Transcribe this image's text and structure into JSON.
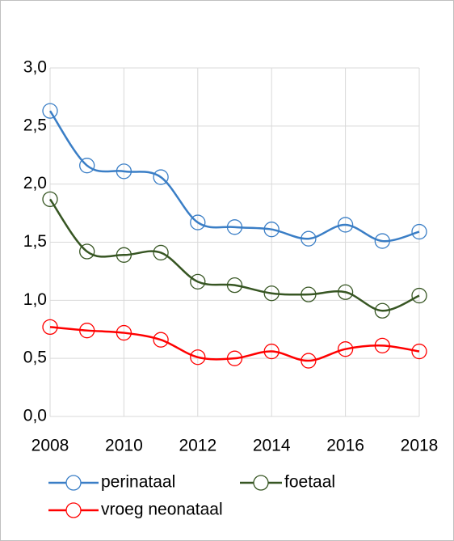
{
  "chart_data": {
    "type": "line",
    "x": [
      2008,
      2009,
      2010,
      2011,
      2012,
      2013,
      2014,
      2015,
      2016,
      2017,
      2018
    ],
    "series": [
      {
        "name": "perinataal",
        "color": "#3a7ec6",
        "values": [
          2.63,
          2.16,
          2.11,
          2.06,
          1.67,
          1.63,
          1.61,
          1.53,
          1.65,
          1.51,
          1.59
        ]
      },
      {
        "name": "foetaal",
        "color": "#375623",
        "values": [
          1.87,
          1.42,
          1.39,
          1.41,
          1.16,
          1.13,
          1.06,
          1.05,
          1.07,
          0.91,
          1.04
        ]
      },
      {
        "name": "vroeg neonataal",
        "color": "#ff0000",
        "values": [
          0.77,
          0.74,
          0.72,
          0.66,
          0.51,
          0.5,
          0.56,
          0.48,
          0.58,
          0.61,
          0.56
        ]
      }
    ],
    "xlim": [
      2008,
      2018
    ],
    "xticks": [
      2008,
      2010,
      2012,
      2014,
      2016,
      2018
    ],
    "ylim": [
      0,
      3
    ],
    "yticks": [
      {
        "value": 0,
        "label": "0,0"
      },
      {
        "value": 0.5,
        "label": "0,5"
      },
      {
        "value": 1,
        "label": "1,0"
      },
      {
        "value": 1.5,
        "label": "1,5"
      },
      {
        "value": 2,
        "label": "2,0"
      },
      {
        "value": 2.5,
        "label": "2,5"
      },
      {
        "value": 3,
        "label": "3,0"
      }
    ],
    "grid": true,
    "smooth": true,
    "legend": "bottom"
  }
}
